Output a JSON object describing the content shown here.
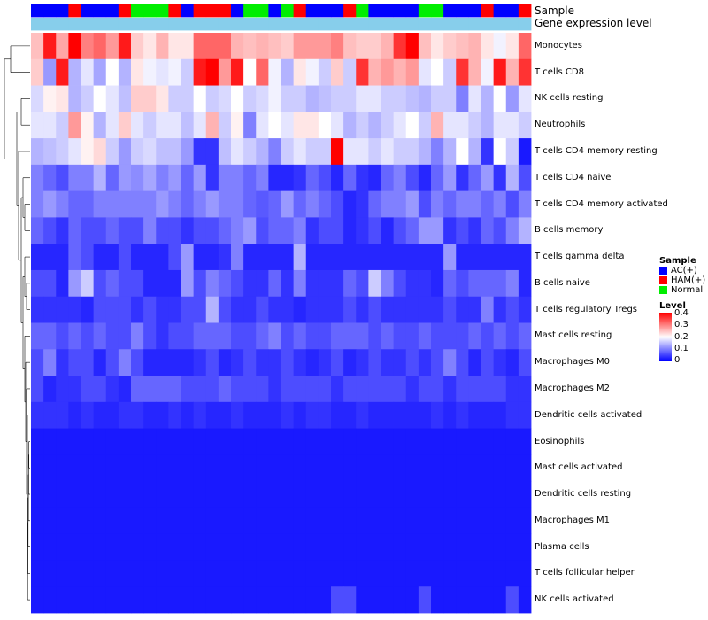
{
  "chart_data": {
    "type": "heatmap",
    "title": "",
    "annotation_tracks": [
      "Sample",
      "Gene expression level"
    ],
    "legend_sample": {
      "title": "Sample",
      "entries": [
        {
          "label": "AC(+)",
          "color": "#0000ff"
        },
        {
          "label": "HAM(+)",
          "color": "#ff0000"
        },
        {
          "label": "Normal",
          "color": "#00ee00"
        }
      ]
    },
    "legend_level": {
      "title": "Level",
      "ticks": [
        "0.4",
        "0.3",
        "0.2",
        "0.1",
        "0"
      ],
      "range": [
        0,
        0.4
      ],
      "colors": [
        "#0000ff",
        "#ffffff",
        "#ff0000"
      ]
    },
    "gene_expression_color": "#87ceeb",
    "sample_groups": [
      "AC(+)",
      "AC(+)",
      "AC(+)",
      "HAM(+)",
      "AC(+)",
      "AC(+)",
      "AC(+)",
      "HAM(+)",
      "Normal",
      "Normal",
      "Normal",
      "HAM(+)",
      "AC(+)",
      "HAM(+)",
      "HAM(+)",
      "HAM(+)",
      "AC(+)",
      "Normal",
      "Normal",
      "AC(+)",
      "Normal",
      "HAM(+)",
      "AC(+)",
      "AC(+)",
      "AC(+)",
      "HAM(+)",
      "Normal",
      "AC(+)",
      "AC(+)",
      "AC(+)",
      "AC(+)",
      "Normal",
      "Normal",
      "AC(+)",
      "AC(+)",
      "AC(+)",
      "HAM(+)",
      "AC(+)",
      "AC(+)",
      "HAM(+)"
    ],
    "rows": [
      "Monocytes",
      "T cells CD8",
      "NK cells resting",
      "Neutrophils",
      "T cells CD4 memory resting",
      "T cells CD4 naive",
      "T cells CD4 memory activated",
      "B cells memory",
      "T cells gamma delta",
      "B cells naive",
      "T cells regulatory  Tregs",
      "Mast cells resting",
      "Macrophages M0",
      "Macrophages M2",
      "Dendritic cells activated",
      "Eosinophils",
      "Mast cells activated",
      "Dendritic cells resting",
      "Macrophages M1",
      "Plasma cells",
      "T cells follicular helper",
      "NK cells activated"
    ],
    "values": [
      [
        0.25,
        0.38,
        0.27,
        0.4,
        0.3,
        0.32,
        0.28,
        0.38,
        0.24,
        0.22,
        0.26,
        0.22,
        0.22,
        0.32,
        0.32,
        0.32,
        0.26,
        0.25,
        0.26,
        0.25,
        0.24,
        0.28,
        0.28,
        0.28,
        0.3,
        0.25,
        0.24,
        0.24,
        0.26,
        0.36,
        0.4,
        0.25,
        0.22,
        0.24,
        0.25,
        0.26,
        0.22,
        0.19,
        0.22,
        0.32
      ],
      [
        0.24,
        0.12,
        0.38,
        0.14,
        0.18,
        0.13,
        0.2,
        0.14,
        0.22,
        0.19,
        0.18,
        0.19,
        0.16,
        0.38,
        0.4,
        0.28,
        0.38,
        0.2,
        0.32,
        0.19,
        0.14,
        0.22,
        0.19,
        0.16,
        0.24,
        0.16,
        0.36,
        0.26,
        0.28,
        0.26,
        0.28,
        0.18,
        0.2,
        0.16,
        0.36,
        0.26,
        0.19,
        0.38,
        0.26,
        0.36
      ],
      [
        0.17,
        0.21,
        0.22,
        0.14,
        0.16,
        0.2,
        0.18,
        0.15,
        0.24,
        0.24,
        0.22,
        0.16,
        0.16,
        0.2,
        0.16,
        0.17,
        0.2,
        0.16,
        0.17,
        0.19,
        0.16,
        0.16,
        0.14,
        0.15,
        0.16,
        0.16,
        0.18,
        0.18,
        0.16,
        0.16,
        0.15,
        0.14,
        0.16,
        0.16,
        0.1,
        0.18,
        0.14,
        0.2,
        0.12,
        0.18
      ],
      [
        0.18,
        0.18,
        0.16,
        0.28,
        0.21,
        0.14,
        0.18,
        0.24,
        0.18,
        0.16,
        0.18,
        0.18,
        0.15,
        0.18,
        0.26,
        0.16,
        0.21,
        0.1,
        0.18,
        0.2,
        0.18,
        0.22,
        0.22,
        0.2,
        0.18,
        0.14,
        0.16,
        0.14,
        0.16,
        0.18,
        0.2,
        0.16,
        0.26,
        0.18,
        0.18,
        0.16,
        0.14,
        0.18,
        0.18,
        0.16
      ],
      [
        0.14,
        0.15,
        0.16,
        0.18,
        0.21,
        0.23,
        0.16,
        0.12,
        0.16,
        0.17,
        0.15,
        0.15,
        0.12,
        0.04,
        0.04,
        0.15,
        0.18,
        0.16,
        0.14,
        0.1,
        0.16,
        0.18,
        0.16,
        0.16,
        0.4,
        0.18,
        0.18,
        0.16,
        0.18,
        0.16,
        0.16,
        0.14,
        0.1,
        0.14,
        0.2,
        0.14,
        0.04,
        0.2,
        0.16,
        0.02
      ],
      [
        0.1,
        0.08,
        0.06,
        0.1,
        0.1,
        0.14,
        0.08,
        0.12,
        0.11,
        0.13,
        0.1,
        0.12,
        0.08,
        0.12,
        0.04,
        0.1,
        0.1,
        0.08,
        0.1,
        0.03,
        0.03,
        0.04,
        0.08,
        0.06,
        0.03,
        0.08,
        0.04,
        0.03,
        0.08,
        0.1,
        0.06,
        0.03,
        0.08,
        0.12,
        0.04,
        0.08,
        0.12,
        0.04,
        0.14,
        0.06
      ],
      [
        0.1,
        0.12,
        0.1,
        0.08,
        0.08,
        0.1,
        0.1,
        0.1,
        0.1,
        0.1,
        0.12,
        0.1,
        0.08,
        0.1,
        0.12,
        0.1,
        0.1,
        0.08,
        0.07,
        0.08,
        0.12,
        0.08,
        0.1,
        0.08,
        0.06,
        0.03,
        0.04,
        0.08,
        0.1,
        0.1,
        0.12,
        0.06,
        0.1,
        0.08,
        0.1,
        0.1,
        0.08,
        0.1,
        0.06,
        0.1
      ],
      [
        0.08,
        0.06,
        0.04,
        0.08,
        0.06,
        0.06,
        0.08,
        0.06,
        0.06,
        0.1,
        0.06,
        0.06,
        0.04,
        0.06,
        0.06,
        0.08,
        0.1,
        0.12,
        0.06,
        0.08,
        0.08,
        0.1,
        0.04,
        0.06,
        0.06,
        0.03,
        0.04,
        0.06,
        0.03,
        0.06,
        0.08,
        0.12,
        0.12,
        0.04,
        0.06,
        0.04,
        0.08,
        0.06,
        0.1,
        0.14
      ],
      [
        0.03,
        0.03,
        0.03,
        0.08,
        0.06,
        0.03,
        0.03,
        0.06,
        0.03,
        0.03,
        0.03,
        0.06,
        0.12,
        0.03,
        0.03,
        0.04,
        0.1,
        0.03,
        0.03,
        0.03,
        0.03,
        0.14,
        0.03,
        0.03,
        0.03,
        0.03,
        0.03,
        0.03,
        0.03,
        0.03,
        0.03,
        0.03,
        0.03,
        0.12,
        0.03,
        0.03,
        0.03,
        0.03,
        0.03,
        0.03
      ],
      [
        0.06,
        0.06,
        0.03,
        0.12,
        0.16,
        0.06,
        0.08,
        0.06,
        0.06,
        0.03,
        0.03,
        0.03,
        0.12,
        0.06,
        0.1,
        0.08,
        0.06,
        0.04,
        0.04,
        0.08,
        0.04,
        0.1,
        0.04,
        0.04,
        0.04,
        0.08,
        0.06,
        0.16,
        0.1,
        0.06,
        0.04,
        0.04,
        0.03,
        0.08,
        0.06,
        0.08,
        0.08,
        0.08,
        0.1,
        0.03
      ],
      [
        0.04,
        0.04,
        0.04,
        0.04,
        0.03,
        0.06,
        0.06,
        0.06,
        0.04,
        0.06,
        0.04,
        0.04,
        0.06,
        0.06,
        0.14,
        0.06,
        0.04,
        0.04,
        0.06,
        0.04,
        0.04,
        0.03,
        0.04,
        0.04,
        0.04,
        0.06,
        0.04,
        0.06,
        0.04,
        0.04,
        0.04,
        0.04,
        0.04,
        0.06,
        0.04,
        0.04,
        0.1,
        0.04,
        0.06,
        0.04
      ],
      [
        0.08,
        0.08,
        0.06,
        0.08,
        0.06,
        0.08,
        0.06,
        0.06,
        0.1,
        0.06,
        0.04,
        0.06,
        0.06,
        0.08,
        0.08,
        0.08,
        0.06,
        0.06,
        0.08,
        0.1,
        0.06,
        0.08,
        0.06,
        0.06,
        0.08,
        0.08,
        0.08,
        0.06,
        0.08,
        0.06,
        0.06,
        0.08,
        0.06,
        0.06,
        0.06,
        0.08,
        0.06,
        0.08,
        0.06,
        0.08
      ],
      [
        0.06,
        0.1,
        0.04,
        0.06,
        0.06,
        0.03,
        0.06,
        0.1,
        0.06,
        0.03,
        0.03,
        0.03,
        0.03,
        0.04,
        0.06,
        0.03,
        0.04,
        0.06,
        0.04,
        0.04,
        0.06,
        0.04,
        0.03,
        0.04,
        0.06,
        0.03,
        0.04,
        0.06,
        0.04,
        0.04,
        0.06,
        0.04,
        0.06,
        0.1,
        0.06,
        0.03,
        0.06,
        0.04,
        0.03,
        0.06
      ],
      [
        0.06,
        0.03,
        0.04,
        0.04,
        0.06,
        0.06,
        0.04,
        0.03,
        0.08,
        0.08,
        0.08,
        0.08,
        0.06,
        0.06,
        0.06,
        0.08,
        0.06,
        0.06,
        0.06,
        0.04,
        0.06,
        0.06,
        0.06,
        0.06,
        0.04,
        0.06,
        0.06,
        0.06,
        0.06,
        0.06,
        0.04,
        0.06,
        0.06,
        0.04,
        0.06,
        0.06,
        0.06,
        0.06,
        0.04,
        0.04
      ],
      [
        0.04,
        0.04,
        0.04,
        0.03,
        0.04,
        0.03,
        0.03,
        0.04,
        0.04,
        0.03,
        0.03,
        0.04,
        0.03,
        0.04,
        0.03,
        0.03,
        0.04,
        0.03,
        0.03,
        0.03,
        0.04,
        0.03,
        0.04,
        0.04,
        0.03,
        0.03,
        0.04,
        0.03,
        0.03,
        0.03,
        0.03,
        0.03,
        0.04,
        0.03,
        0.04,
        0.03,
        0.03,
        0.03,
        0.04,
        0.04
      ],
      [
        0.02,
        0.02,
        0.02,
        0.02,
        0.02,
        0.02,
        0.02,
        0.02,
        0.02,
        0.02,
        0.02,
        0.02,
        0.02,
        0.02,
        0.02,
        0.02,
        0.02,
        0.02,
        0.02,
        0.02,
        0.02,
        0.02,
        0.02,
        0.02,
        0.02,
        0.02,
        0.02,
        0.02,
        0.02,
        0.02,
        0.02,
        0.02,
        0.02,
        0.02,
        0.02,
        0.02,
        0.02,
        0.02,
        0.02,
        0.02
      ],
      [
        0.02,
        0.02,
        0.02,
        0.02,
        0.02,
        0.02,
        0.02,
        0.02,
        0.02,
        0.02,
        0.02,
        0.02,
        0.02,
        0.02,
        0.02,
        0.02,
        0.02,
        0.02,
        0.02,
        0.02,
        0.02,
        0.02,
        0.02,
        0.02,
        0.02,
        0.02,
        0.02,
        0.02,
        0.02,
        0.02,
        0.02,
        0.02,
        0.02,
        0.02,
        0.02,
        0.02,
        0.02,
        0.02,
        0.02,
        0.02
      ],
      [
        0.02,
        0.02,
        0.02,
        0.02,
        0.02,
        0.02,
        0.02,
        0.02,
        0.02,
        0.02,
        0.02,
        0.02,
        0.02,
        0.02,
        0.02,
        0.02,
        0.02,
        0.02,
        0.02,
        0.02,
        0.02,
        0.02,
        0.02,
        0.02,
        0.02,
        0.02,
        0.02,
        0.02,
        0.02,
        0.02,
        0.02,
        0.02,
        0.02,
        0.02,
        0.02,
        0.02,
        0.02,
        0.02,
        0.02,
        0.02
      ],
      [
        0.02,
        0.02,
        0.02,
        0.02,
        0.02,
        0.02,
        0.02,
        0.02,
        0.02,
        0.02,
        0.02,
        0.02,
        0.02,
        0.02,
        0.02,
        0.02,
        0.02,
        0.02,
        0.02,
        0.02,
        0.02,
        0.02,
        0.02,
        0.02,
        0.02,
        0.02,
        0.02,
        0.02,
        0.02,
        0.02,
        0.02,
        0.02,
        0.02,
        0.02,
        0.02,
        0.02,
        0.02,
        0.02,
        0.02,
        0.02
      ],
      [
        0.02,
        0.02,
        0.02,
        0.02,
        0.02,
        0.02,
        0.02,
        0.02,
        0.02,
        0.02,
        0.02,
        0.02,
        0.02,
        0.02,
        0.02,
        0.02,
        0.02,
        0.02,
        0.02,
        0.02,
        0.02,
        0.02,
        0.02,
        0.02,
        0.02,
        0.02,
        0.02,
        0.02,
        0.02,
        0.02,
        0.02,
        0.02,
        0.02,
        0.02,
        0.02,
        0.02,
        0.02,
        0.02,
        0.02,
        0.02
      ],
      [
        0.02,
        0.02,
        0.02,
        0.02,
        0.02,
        0.02,
        0.02,
        0.02,
        0.02,
        0.02,
        0.02,
        0.02,
        0.02,
        0.02,
        0.02,
        0.02,
        0.02,
        0.02,
        0.02,
        0.02,
        0.02,
        0.02,
        0.02,
        0.02,
        0.02,
        0.02,
        0.02,
        0.02,
        0.02,
        0.02,
        0.02,
        0.02,
        0.02,
        0.02,
        0.02,
        0.02,
        0.02,
        0.02,
        0.02,
        0.02
      ],
      [
        0.02,
        0.02,
        0.02,
        0.02,
        0.02,
        0.02,
        0.02,
        0.02,
        0.02,
        0.02,
        0.02,
        0.02,
        0.02,
        0.02,
        0.02,
        0.02,
        0.02,
        0.02,
        0.02,
        0.02,
        0.02,
        0.02,
        0.02,
        0.02,
        0.06,
        0.06,
        0.02,
        0.02,
        0.02,
        0.02,
        0.02,
        0.06,
        0.02,
        0.02,
        0.02,
        0.02,
        0.02,
        0.02,
        0.06,
        0.02
      ]
    ]
  }
}
